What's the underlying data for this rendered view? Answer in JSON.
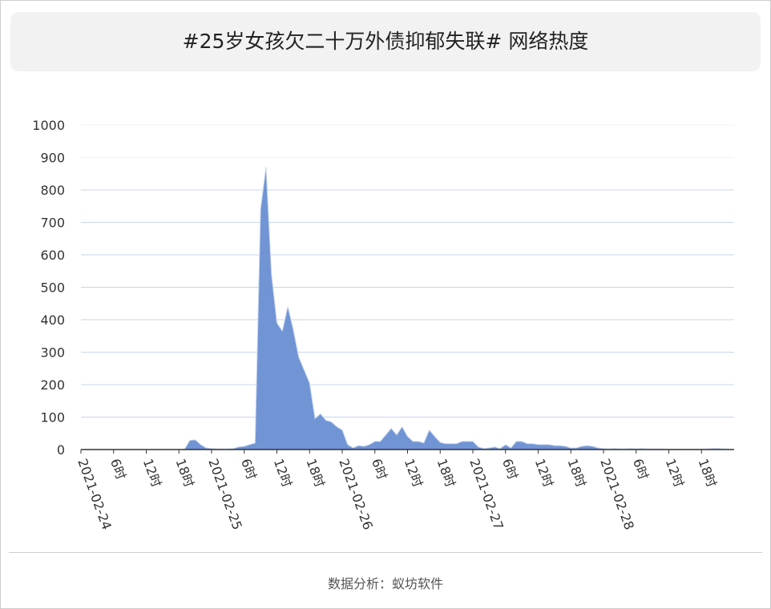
{
  "header": {
    "title": "#25岁女孩欠二十万外债抑郁失联# 网络热度"
  },
  "footer": {
    "text": "数据分析：蚁坊软件"
  },
  "chart_data": {
    "type": "area",
    "color": "#7094d4",
    "grid": true,
    "ylim": [
      0,
      1000
    ],
    "yticks": [
      0,
      100,
      200,
      300,
      400,
      500,
      600,
      700,
      800,
      900,
      1000
    ],
    "categories": [
      "2021-02-24",
      null,
      null,
      null,
      null,
      null,
      "6时",
      null,
      null,
      null,
      null,
      null,
      "12时",
      null,
      null,
      null,
      null,
      null,
      "18时",
      null,
      null,
      null,
      null,
      null,
      "2021-02-25",
      null,
      null,
      null,
      null,
      null,
      "6时",
      null,
      null,
      null,
      null,
      null,
      "12时",
      null,
      null,
      null,
      null,
      null,
      "18时",
      null,
      null,
      null,
      null,
      null,
      "2021-02-26",
      null,
      null,
      null,
      null,
      null,
      "6时",
      null,
      null,
      null,
      null,
      null,
      "12时",
      null,
      null,
      null,
      null,
      null,
      "18时",
      null,
      null,
      null,
      null,
      null,
      "2021-02-27",
      null,
      null,
      null,
      null,
      null,
      "6时",
      null,
      null,
      null,
      null,
      null,
      "12时",
      null,
      null,
      null,
      null,
      null,
      "18时",
      null,
      null,
      null,
      null,
      null,
      "2021-02-28",
      null,
      null,
      null,
      null,
      null,
      "6时",
      null,
      null,
      null,
      null,
      null,
      "12时",
      null,
      null,
      null,
      null,
      null,
      "18时",
      null,
      null,
      null,
      null,
      null
    ],
    "values": [
      0,
      0,
      0,
      0,
      0,
      0,
      0,
      0,
      0,
      0,
      0,
      0,
      0,
      0,
      0,
      0,
      0,
      0,
      0,
      0,
      28,
      30,
      15,
      5,
      3,
      2,
      2,
      2,
      3,
      8,
      10,
      15,
      20,
      740,
      870,
      540,
      390,
      365,
      440,
      370,
      285,
      245,
      205,
      95,
      110,
      90,
      85,
      70,
      60,
      15,
      5,
      12,
      10,
      15,
      25,
      25,
      45,
      65,
      45,
      70,
      40,
      25,
      25,
      20,
      60,
      40,
      22,
      18,
      18,
      18,
      25,
      25,
      25,
      8,
      3,
      5,
      8,
      3,
      15,
      5,
      25,
      25,
      18,
      18,
      15,
      15,
      15,
      12,
      12,
      10,
      5,
      5,
      10,
      12,
      10,
      5,
      3,
      2,
      3,
      2,
      2,
      3,
      2,
      3,
      2,
      2,
      2,
      2,
      1,
      1,
      1,
      1,
      1,
      1,
      1,
      2,
      3,
      3,
      2,
      2
    ]
  }
}
